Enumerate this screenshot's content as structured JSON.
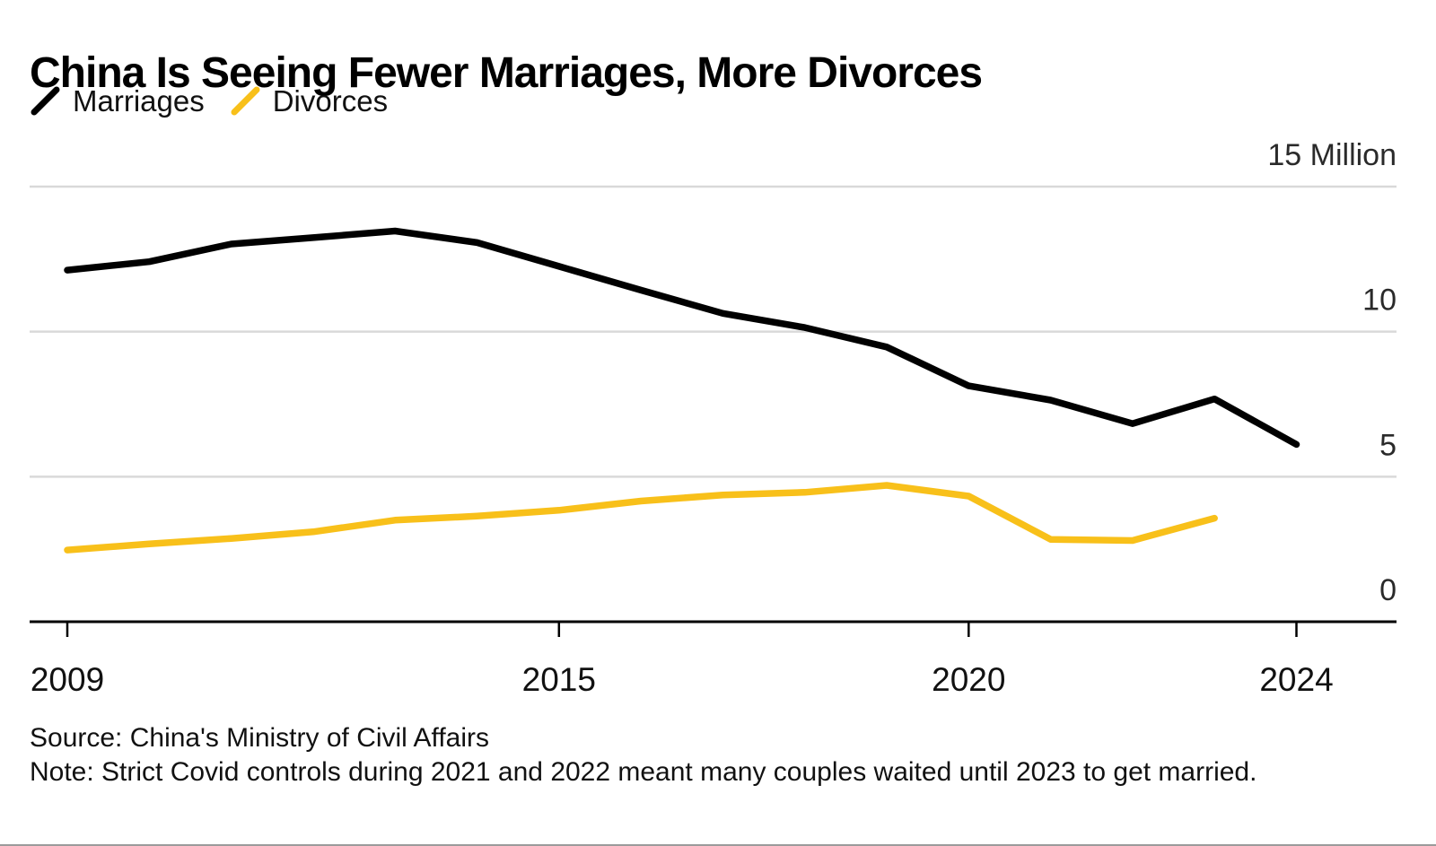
{
  "header": {
    "title": "China Is Seeing Fewer Marriages, More Divorces"
  },
  "chart_data": {
    "type": "line",
    "title": "China Is Seeing Fewer Marriages, More Divorces",
    "unit": "Million",
    "xlabel": "",
    "ylabel": "",
    "x": [
      2009,
      2010,
      2011,
      2012,
      2013,
      2014,
      2015,
      2016,
      2017,
      2018,
      2019,
      2020,
      2021,
      2022,
      2023,
      2024
    ],
    "series": [
      {
        "name": "Marriages",
        "color": "#000000",
        "values": [
          12.12,
          12.41,
          13.02,
          13.24,
          13.47,
          13.07,
          12.25,
          11.43,
          10.63,
          10.14,
          9.47,
          8.13,
          7.64,
          6.83,
          7.68,
          6.11
        ]
      },
      {
        "name": "Divorces",
        "color": "#F8C01A",
        "values": [
          2.47,
          2.68,
          2.87,
          3.1,
          3.5,
          3.64,
          3.84,
          4.16,
          4.37,
          4.46,
          4.7,
          4.33,
          2.84,
          2.8,
          3.57,
          null
        ]
      }
    ],
    "ylim": [
      0,
      15
    ],
    "yticks": [
      {
        "value": 0,
        "label": "0",
        "gridline": false
      },
      {
        "value": 5,
        "label": "5",
        "gridline": true
      },
      {
        "value": 10,
        "label": "10",
        "gridline": true
      },
      {
        "value": 15,
        "label": "15 Million",
        "gridline": true
      }
    ],
    "xticks": [
      2009,
      2015,
      2020,
      2024
    ],
    "grid": true,
    "legend_position": "top-left"
  },
  "footer": {
    "source": "Source: China's Ministry of Civil Affairs",
    "note": "Note: Strict Covid controls during 2021 and 2022 meant many couples waited until 2023 to get married."
  }
}
